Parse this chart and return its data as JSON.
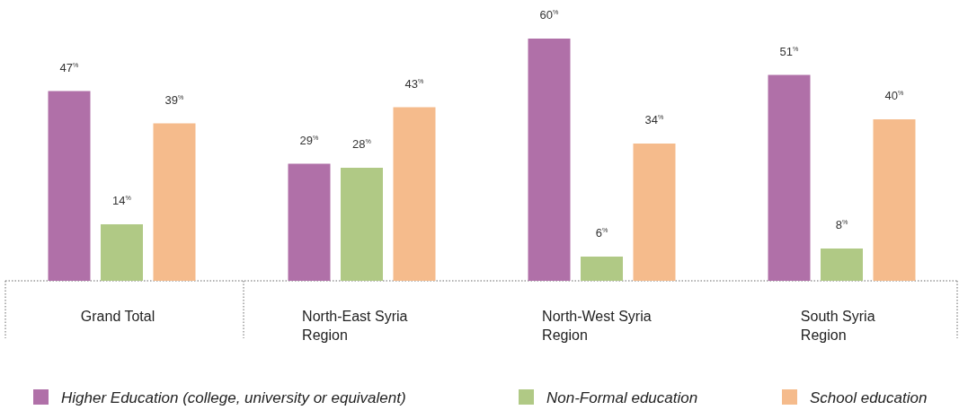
{
  "chart_data": {
    "type": "bar",
    "categories": [
      "Grand Total",
      "North-East Syria Region",
      "North-West Syria Region",
      "South Syria Region"
    ],
    "series": [
      {
        "name": "Higher Education (college, university or equivalent)",
        "color": "#b070a8",
        "values": [
          47,
          29,
          60,
          51
        ],
        "value_labels": [
          "47$^{%}$",
          "29$^{%}$",
          "60$^{%}$",
          "51$^{%}$"
        ]
      },
      {
        "name": "Non-Formal education",
        "color": "#b0c985",
        "values": [
          14,
          28,
          6,
          8
        ],
        "value_labels": [
          "14$^{%}$",
          "28$^{%}$",
          "6$^{%}$",
          "8$^{%}$"
        ]
      },
      {
        "name": "School education",
        "color": "#f5bb8c",
        "values": [
          39,
          43,
          34,
          40
        ],
        "value_labels": [
          "39$^{%}$",
          "43$^{%}$",
          "34$^{%}$",
          "40$^{%}$"
        ]
      }
    ],
    "legend": "bottom"
  }
}
